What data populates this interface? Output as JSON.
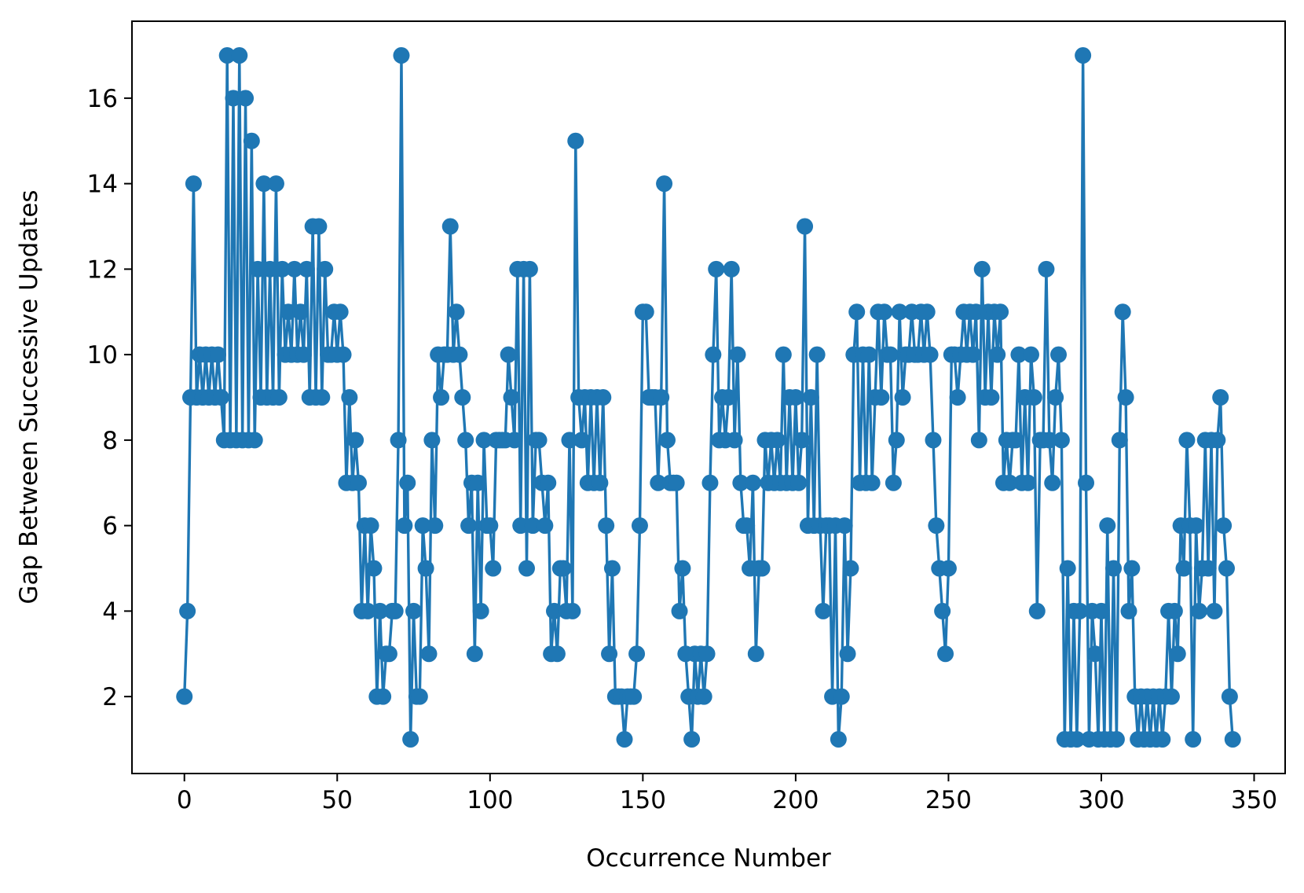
{
  "chart_data": {
    "type": "line",
    "xlabel": "Occurrence Number",
    "ylabel": "Gap Between Successive Updates",
    "x": [
      0,
      1,
      2,
      3,
      4,
      5,
      6,
      7,
      8,
      9,
      10,
      11,
      12,
      13,
      14,
      15,
      16,
      17,
      18,
      19,
      20,
      21,
      22,
      23,
      24,
      25,
      26,
      27,
      28,
      29,
      30,
      31,
      32,
      33,
      34,
      35,
      36,
      37,
      38,
      39,
      40,
      41,
      42,
      43,
      44,
      45,
      46,
      47,
      48,
      49,
      50,
      51,
      52,
      53,
      54,
      55,
      56,
      57,
      58,
      59,
      60,
      61,
      62,
      63,
      64,
      65,
      66,
      67,
      68,
      69,
      70,
      71,
      72,
      73,
      74,
      75,
      76,
      77,
      78,
      79,
      80,
      81,
      82,
      83,
      84,
      85,
      86,
      87,
      88,
      89,
      90,
      91,
      92,
      93,
      94,
      95,
      96,
      97,
      98,
      99,
      100,
      101,
      102,
      103,
      104,
      105,
      106,
      107,
      108,
      109,
      110,
      111,
      112,
      113,
      114,
      115,
      116,
      117,
      118,
      119,
      120,
      121,
      122,
      123,
      124,
      125,
      126,
      127,
      128,
      129,
      130,
      131,
      132,
      133,
      134,
      135,
      136,
      137,
      138,
      139,
      140,
      141,
      142,
      143,
      144,
      145,
      146,
      147,
      148,
      149,
      150,
      151,
      152,
      153,
      154,
      155,
      156,
      157,
      158,
      159,
      160,
      161,
      162,
      163,
      164,
      165,
      166,
      167,
      168,
      169,
      170,
      171,
      172,
      173,
      174,
      175,
      176,
      177,
      178,
      179,
      180,
      181,
      182,
      183,
      184,
      185,
      186,
      187,
      188,
      189,
      190,
      191,
      192,
      193,
      194,
      195,
      196,
      197,
      198,
      199,
      200,
      201,
      202,
      203,
      204,
      205,
      206,
      207,
      208,
      209,
      210,
      211,
      212,
      213,
      214,
      215,
      216,
      217,
      218,
      219,
      220,
      221,
      222,
      223,
      224,
      225,
      226,
      227,
      228,
      229,
      230,
      231,
      232,
      233,
      234,
      235,
      236,
      237,
      238,
      239,
      240,
      241,
      242,
      243,
      244,
      245,
      246,
      247,
      248,
      249,
      250,
      251,
      252,
      253,
      254,
      255,
      256,
      257,
      258,
      259,
      260,
      261,
      262,
      263,
      264,
      265,
      266,
      267,
      268,
      269,
      270,
      271,
      272,
      273,
      274,
      275,
      276,
      277,
      278,
      279,
      280,
      281,
      282,
      283,
      284,
      285,
      286,
      287,
      288,
      289,
      290,
      291,
      292,
      293,
      294,
      295,
      296,
      297,
      298,
      299,
      300,
      301,
      302,
      303,
      304,
      305,
      306,
      307,
      308,
      309,
      310,
      311,
      312,
      313,
      314,
      315,
      316,
      317,
      318,
      319,
      320,
      321,
      322,
      323,
      324,
      325,
      326,
      327,
      328,
      329,
      330,
      331,
      332,
      333,
      334,
      335,
      336,
      337,
      338,
      339,
      340,
      341,
      342,
      343
    ],
    "series": [
      {
        "color": "#1f77b4",
        "values": [
          2,
          4,
          9,
          14,
          9,
          10,
          9,
          10,
          9,
          10,
          9,
          10,
          9,
          8,
          17,
          8,
          16,
          8,
          17,
          8,
          16,
          8,
          15,
          8,
          12,
          9,
          14,
          9,
          12,
          9,
          14,
          9,
          12,
          10,
          11,
          10,
          12,
          10,
          11,
          10,
          12,
          9,
          13,
          9,
          13,
          9,
          12,
          10,
          10,
          11,
          10,
          11,
          10,
          7,
          9,
          7,
          8,
          7,
          4,
          6,
          4,
          6,
          5,
          2,
          4,
          2,
          3,
          3,
          4,
          4,
          8,
          17,
          6,
          7,
          1,
          4,
          2,
          2,
          6,
          5,
          3,
          8,
          6,
          10,
          9,
          10,
          10,
          13,
          10,
          11,
          10,
          9,
          8,
          6,
          7,
          3,
          7,
          4,
          8,
          6,
          6,
          5,
          8,
          8,
          8,
          8,
          10,
          9,
          8,
          12,
          6,
          12,
          5,
          12,
          6,
          8,
          8,
          7,
          6,
          7,
          3,
          4,
          3,
          5,
          5,
          4,
          8,
          4,
          15,
          9,
          8,
          9,
          7,
          9,
          7,
          9,
          7,
          9,
          6,
          3,
          5,
          2,
          2,
          2,
          1,
          2,
          2,
          2,
          3,
          6,
          11,
          11,
          9,
          9,
          9,
          7,
          9,
          14,
          8,
          7,
          7,
          7,
          4,
          5,
          3,
          2,
          1,
          3,
          2,
          3,
          2,
          3,
          7,
          10,
          12,
          8,
          9,
          8,
          9,
          12,
          8,
          10,
          7,
          6,
          6,
          5,
          7,
          3,
          5,
          5,
          8,
          7,
          8,
          7,
          8,
          7,
          10,
          7,
          9,
          7,
          9,
          7,
          8,
          13,
          6,
          9,
          6,
          10,
          6,
          4,
          6,
          6,
          2,
          6,
          1,
          2,
          6,
          3,
          5,
          10,
          11,
          7,
          10,
          7,
          10,
          7,
          9,
          11,
          9,
          11,
          10,
          10,
          7,
          8,
          11,
          9,
          10,
          10,
          11,
          10,
          10,
          11,
          10,
          11,
          10,
          8,
          6,
          5,
          4,
          3,
          5,
          10,
          10,
          9,
          10,
          11,
          10,
          11,
          10,
          11,
          8,
          12,
          9,
          11,
          9,
          11,
          10,
          11,
          7,
          8,
          7,
          8,
          8,
          10,
          7,
          9,
          7,
          10,
          9,
          4,
          8,
          8,
          12,
          8,
          7,
          9,
          10,
          8,
          1,
          5,
          1,
          4,
          1,
          4,
          17,
          7,
          1,
          4,
          3,
          1,
          4,
          1,
          6,
          1,
          5,
          1,
          8,
          11,
          9,
          4,
          5,
          2,
          1,
          2,
          1,
          2,
          1,
          2,
          1,
          2,
          1,
          2,
          4,
          2,
          4,
          3,
          6,
          5,
          8,
          6,
          1,
          6,
          4,
          5,
          8,
          5,
          8,
          4,
          8,
          9,
          6,
          5,
          2,
          1
        ]
      }
    ],
    "xlim": [
      -17.15,
      360.15
    ],
    "ylim": [
      0.2,
      17.8
    ],
    "xticks": [
      0,
      50,
      100,
      150,
      200,
      250,
      300,
      350
    ],
    "yticks": [
      2,
      4,
      6,
      8,
      10,
      12,
      14,
      16
    ],
    "grid": false
  }
}
